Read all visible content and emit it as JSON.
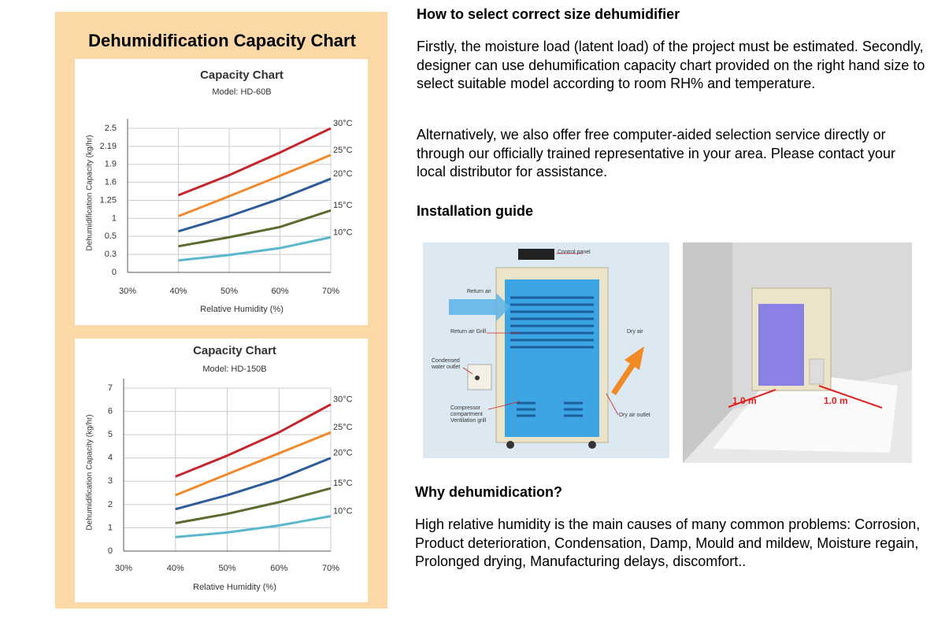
{
  "header": {
    "title": "Dehumidification Capacity Chart"
  },
  "chart_data": [
    {
      "type": "line",
      "title": "Capacity Chart",
      "subtitle": "Model: HD-60B",
      "x_label": "Relative Humidity (%)",
      "y_label": "Dehumidification Capacity (kg/hr)",
      "x": [
        40,
        50,
        60,
        70
      ],
      "xlim": [
        30,
        70
      ],
      "xticks": [
        {
          "value": 30,
          "label": "30%"
        },
        {
          "value": 40,
          "label": "40%"
        },
        {
          "value": 50,
          "label": "50%"
        },
        {
          "value": 60,
          "label": "60%"
        },
        {
          "value": 70,
          "label": "70%"
        }
      ],
      "ylim": [
        0,
        2.5
      ],
      "yticks": [
        0,
        0.3,
        0.5,
        1,
        1.25,
        1.6,
        1.9,
        2.19,
        2.5
      ],
      "grid": true,
      "series": [
        {
          "name": "30°C",
          "color": "#c4262e",
          "values": [
            1.35,
            1.72,
            2.09,
            2.5
          ]
        },
        {
          "name": "25°C",
          "color": "#f0892a",
          "values": [
            1.03,
            1.33,
            1.71,
            2.05
          ]
        },
        {
          "name": "20°C",
          "color": "#2f5c98",
          "values": [
            0.64,
            1.03,
            1.28,
            1.66
          ]
        },
        {
          "name": "15°C",
          "color": "#5b6b30",
          "values": [
            0.39,
            0.49,
            0.76,
            1.11
          ]
        },
        {
          "name": "10°C",
          "color": "#5ab7cc",
          "values": [
            0.2,
            0.29,
            0.37,
            0.49
          ]
        }
      ]
    },
    {
      "type": "line",
      "title": "Capacity Chart",
      "subtitle": "Model: HD-150B",
      "x_label": "Relative Humidity (%)",
      "y_label": "Dehumidification Capacity (kg/hr)",
      "x": [
        40,
        50,
        60,
        70
      ],
      "xlim": [
        30,
        70
      ],
      "xticks": [
        {
          "value": 30,
          "label": "30%"
        },
        {
          "value": 40,
          "label": "40%"
        },
        {
          "value": 50,
          "label": "50%"
        },
        {
          "value": 60,
          "label": "60%"
        },
        {
          "value": 70,
          "label": "70%"
        }
      ],
      "ylim": [
        0,
        7
      ],
      "yticks": [
        0,
        1,
        2,
        3,
        4,
        5,
        6,
        7
      ],
      "grid": true,
      "series": [
        {
          "name": "30°C",
          "color": "#c4262e",
          "values": [
            3.2,
            4.1,
            5.1,
            6.3
          ]
        },
        {
          "name": "25°C",
          "color": "#f0892a",
          "values": [
            2.4,
            3.3,
            4.2,
            5.1
          ]
        },
        {
          "name": "20°C",
          "color": "#2f5c98",
          "values": [
            1.8,
            2.4,
            3.1,
            4.0
          ]
        },
        {
          "name": "15°C",
          "color": "#5b6b30",
          "values": [
            1.2,
            1.6,
            2.1,
            2.7
          ]
        },
        {
          "name": "10°C",
          "color": "#5ab7cc",
          "values": [
            0.6,
            0.8,
            1.1,
            1.5
          ]
        }
      ]
    }
  ],
  "sections": [
    {
      "heading": "How to select correct size dehumidifier",
      "paragraphs": [
        "Firstly, the moisture load (latent load) of the project must be estimated. Secondly, designer can use dehumification capacity chart provided on the right hand size to select suitable model according to room RH% and temperature.",
        "Alternatively, we also offer free computer-aided selection service directly or through our officially trained representative in your area. Please contact your local distributor for assistance."
      ]
    },
    {
      "heading": "Installation guide"
    },
    {
      "heading": "Why dehumidication?",
      "paragraphs": [
        "High relative humidity is the main causes of many common problems: Corrosion, Product deterioration, Condensation, Damp, Mould and mildew, Moisture regain, Prolonged drying, Manufacturing delays, discomfort.."
      ]
    }
  ],
  "installation": {
    "diagram_labels": [
      "Control panel",
      "Return air",
      "Return air Grill",
      "Condensed water outlet",
      "Compressor compartment Ventilation grill",
      "Dry air",
      "Dry air outlet"
    ],
    "room_labels": [
      "1.0 m",
      "1.0 m"
    ]
  }
}
